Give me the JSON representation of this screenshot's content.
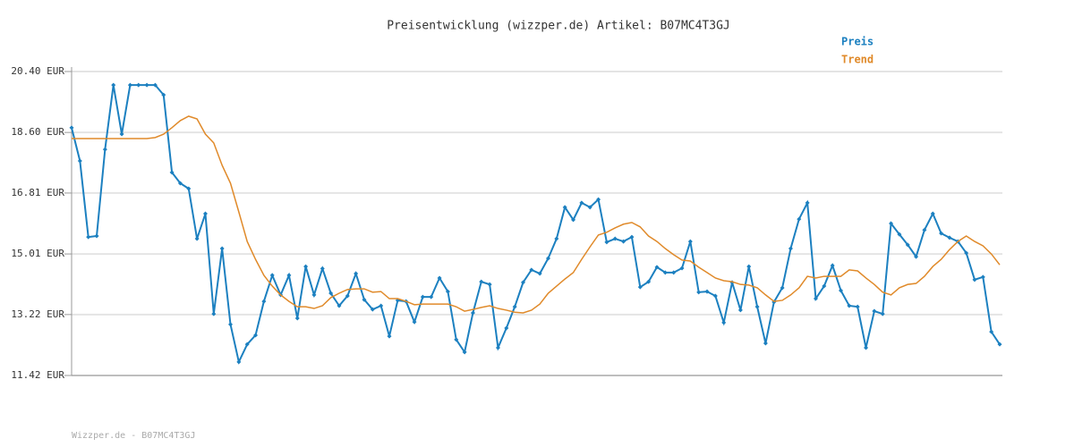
{
  "chart_data": {
    "type": "line",
    "title": "Preisentwicklung (wizzper.de) Artikel: B07MC4T3GJ",
    "footer": "Wizzper.de - B07MC4T3GJ",
    "ylim": [
      11.42,
      20.4
    ],
    "yticks": [
      {
        "value": 11.42,
        "label": "11.42 EUR"
      },
      {
        "value": 13.22,
        "label": "13.22 EUR"
      },
      {
        "value": 15.01,
        "label": "15.01 EUR"
      },
      {
        "value": 16.81,
        "label": "16.81 EUR"
      },
      {
        "value": 18.6,
        "label": "18.60 EUR"
      },
      {
        "value": 20.4,
        "label": "20.40 EUR"
      }
    ],
    "grid": true,
    "legend": "top-right",
    "series": [
      {
        "name": "Preis",
        "color": "#1c80c0",
        "values": [
          18.74,
          17.76,
          15.51,
          15.54,
          18.1,
          20.0,
          18.55,
          20.0,
          20.0,
          20.0,
          20.0,
          19.71,
          17.42,
          17.1,
          16.94,
          15.46,
          16.2,
          13.24,
          15.17,
          12.93,
          11.82,
          12.34,
          12.61,
          13.61,
          14.38,
          13.8,
          14.38,
          13.11,
          14.64,
          13.8,
          14.58,
          13.85,
          13.48,
          13.77,
          14.43,
          13.66,
          13.37,
          13.48,
          12.58,
          13.64,
          13.61,
          13.0,
          13.74,
          13.74,
          14.3,
          13.9,
          12.48,
          12.11,
          13.27,
          14.19,
          14.11,
          12.24,
          12.82,
          13.45,
          14.17,
          14.54,
          14.43,
          14.88,
          15.46,
          16.39,
          16.02,
          16.52,
          16.39,
          16.62,
          15.36,
          15.46,
          15.38,
          15.51,
          14.03,
          14.19,
          14.62,
          14.46,
          14.46,
          14.59,
          15.38,
          13.88,
          13.9,
          13.77,
          12.98,
          14.17,
          13.35,
          14.64,
          13.45,
          12.37,
          13.59,
          14.01,
          15.17,
          16.04,
          16.52,
          13.69,
          14.06,
          14.67,
          13.93,
          13.48,
          13.45,
          12.24,
          13.32,
          13.24,
          15.91,
          15.59,
          15.28,
          14.93,
          15.72,
          16.2,
          15.62,
          15.49,
          15.38,
          15.04,
          14.25,
          14.33,
          12.71,
          12.34
        ]
      },
      {
        "name": "Trend",
        "color": "#e08a2a",
        "values": [
          18.42,
          18.42,
          18.42,
          18.42,
          18.42,
          18.42,
          18.42,
          18.42,
          18.42,
          18.42,
          18.45,
          18.55,
          18.74,
          18.95,
          19.08,
          19.0,
          18.55,
          18.29,
          17.63,
          17.1,
          16.25,
          15.38,
          14.85,
          14.38,
          14.06,
          13.8,
          13.61,
          13.45,
          13.45,
          13.4,
          13.48,
          13.72,
          13.85,
          13.96,
          13.98,
          13.98,
          13.88,
          13.9,
          13.69,
          13.69,
          13.61,
          13.51,
          13.53,
          13.53,
          13.53,
          13.53,
          13.45,
          13.32,
          13.37,
          13.43,
          13.48,
          13.4,
          13.35,
          13.29,
          13.27,
          13.35,
          13.53,
          13.85,
          14.06,
          14.27,
          14.46,
          14.85,
          15.22,
          15.57,
          15.65,
          15.78,
          15.89,
          15.94,
          15.81,
          15.54,
          15.38,
          15.17,
          14.99,
          14.83,
          14.8,
          14.62,
          14.46,
          14.3,
          14.22,
          14.19,
          14.11,
          14.09,
          14.01,
          13.8,
          13.61,
          13.64,
          13.8,
          14.01,
          14.35,
          14.3,
          14.35,
          14.35,
          14.35,
          14.54,
          14.51,
          14.3,
          14.11,
          13.88,
          13.8,
          14.01,
          14.11,
          14.14,
          14.35,
          14.64,
          14.85,
          15.14,
          15.38,
          15.54,
          15.38,
          15.25,
          15.01,
          14.69
        ]
      }
    ]
  }
}
